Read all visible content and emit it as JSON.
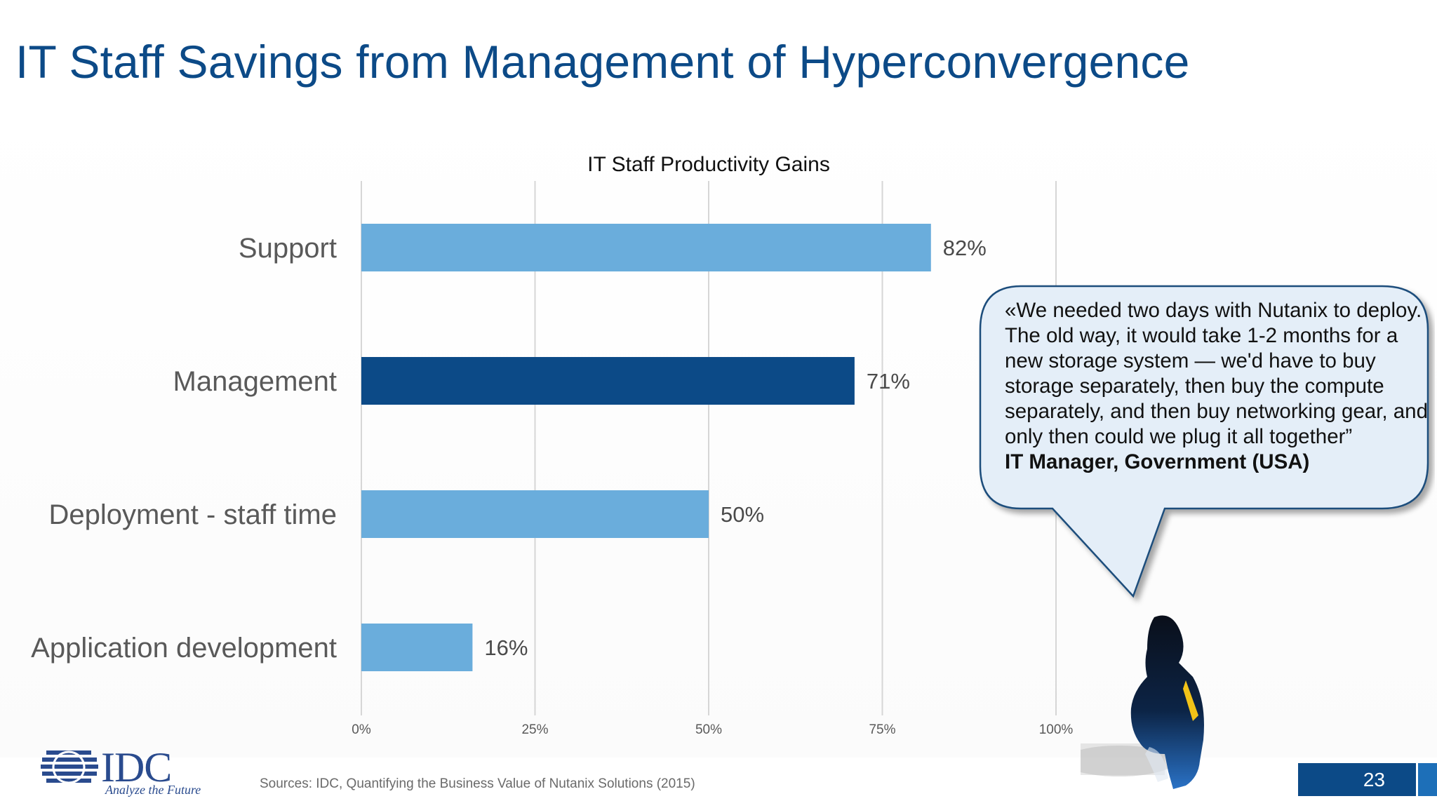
{
  "slide": {
    "title": "IT Staff Savings from Management of Hyperconvergence",
    "source": "Sources: IDC, Quantifying the Business Value of Nutanix Solutions (2015)",
    "page_number": "23"
  },
  "logo": {
    "name": "IDC",
    "tagline": "Analyze the Future"
  },
  "quote": {
    "text": "«We needed two days with Nutanix to deploy. The old way, it would take 1-2 months for a new storage system — we'd have to buy storage separately, then buy the compute separately, and then buy networking gear, and only then could we plug it all together”",
    "attribution": "IT Manager, Government (USA)"
  },
  "colors": {
    "title": "#0c4a87",
    "bar_default": "#6aaddc",
    "bar_highlight": "#0c4a87",
    "page_box": "#0c4a87"
  },
  "chart_data": {
    "type": "bar",
    "orientation": "horizontal",
    "title": "IT Staff Productivity Gains",
    "categories": [
      "Support",
      "Management",
      "Deployment - staff time",
      "Application development"
    ],
    "values": [
      82,
      71,
      50,
      16
    ],
    "value_labels": [
      "82%",
      "71%",
      "50%",
      "16%"
    ],
    "highlight_index": 1,
    "xlim": [
      0,
      100
    ],
    "x_ticks": [
      0,
      25,
      50,
      75,
      100
    ],
    "x_tick_labels": [
      "0%",
      "25%",
      "50%",
      "75%",
      "100%"
    ],
    "grid": true,
    "legend": "none"
  }
}
